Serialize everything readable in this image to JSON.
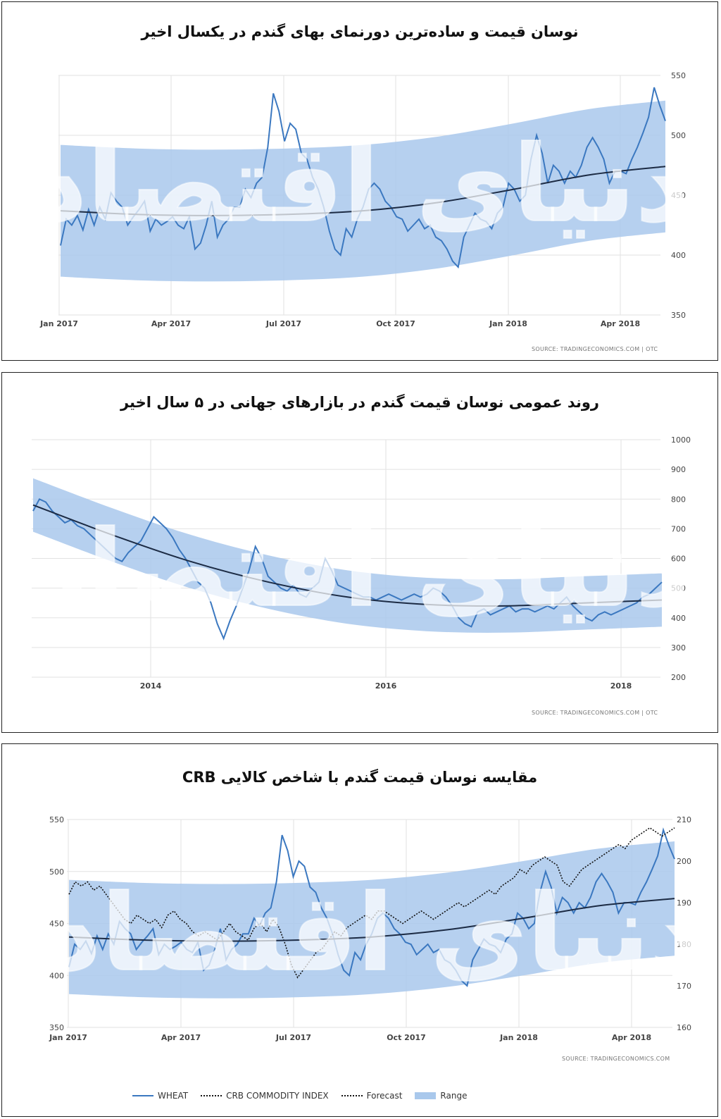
{
  "source_top": "SOURCE: TRADINGECONOMICS.COM | OTC",
  "source_mid": "SOURCE: TRADINGECONOMICS.COM | OTC",
  "source_bot": "SOURCE: TRADINGECONOMICS.COM",
  "watermark": "دنیای اقتصاد",
  "colors": {
    "wheat": "#3b78c0",
    "band": "#a9c8ec",
    "trend": "#1c2b44",
    "crb": "#111111"
  },
  "legend": {
    "wheat": "WHEAT",
    "crb": "CRB COMMODITY INDEX",
    "forecast": "Forecast",
    "range": "Range"
  },
  "chart_data": [
    {
      "type": "line",
      "title": "نوسان قیمت  و ساده‌ترین دورنمای بهای گندم در یکسال اخیر",
      "x_tick_labels": [
        "Jan 2017",
        "Apr 2017",
        "Jul 2017",
        "Oct 2017",
        "Jan 2018",
        "Apr 2018"
      ],
      "y_tick_labels": [
        "550",
        "500",
        "450",
        "400",
        "350"
      ],
      "ylim": [
        350,
        550
      ],
      "y_axis_side": "right",
      "grid": true,
      "series": [
        {
          "values": [
            408,
            430,
            425,
            433,
            421,
            438,
            425,
            440,
            430,
            452,
            445,
            440,
            425,
            432,
            438,
            445,
            420,
            430,
            425,
            428,
            432,
            425,
            422,
            432,
            405,
            410,
            425,
            445,
            415,
            425,
            430,
            440,
            440,
            455,
            448,
            460,
            465,
            490,
            535,
            520,
            495,
            510,
            505,
            485,
            480,
            465,
            455,
            440,
            420,
            405,
            400,
            422,
            415,
            430,
            440,
            455,
            460,
            455,
            445,
            440,
            432,
            430,
            420,
            425,
            430,
            422,
            425,
            415,
            412,
            405,
            395,
            390,
            415,
            425,
            435,
            430,
            428,
            422,
            435,
            440,
            460,
            455,
            445,
            450,
            480,
            500,
            485,
            460,
            475,
            470,
            460,
            470,
            465,
            475,
            490,
            498,
            490,
            480,
            460,
            470,
            470,
            468,
            480,
            490,
            502,
            515,
            540,
            525,
            512
          ]
        }
      ],
      "trend": [
        437,
        434,
        433,
        434,
        437,
        444,
        455,
        467,
        474
      ],
      "band_offset": 55
    },
    {
      "type": "line",
      "title": "روند عمومی نوسان قیمت گندم در بازارهای جهانی در ۵ سال اخیر",
      "x_tick_labels": [
        "2014",
        "2016",
        "2018"
      ],
      "y_tick_labels": [
        "1000",
        "900",
        "800",
        "700",
        "600",
        "500",
        "400",
        "300",
        "200"
      ],
      "ylim": [
        200,
        1000
      ],
      "y_axis_side": "right",
      "grid": true,
      "series": [
        {
          "values": [
            760,
            800,
            790,
            760,
            740,
            720,
            730,
            710,
            700,
            680,
            660,
            640,
            620,
            600,
            590,
            620,
            640,
            660,
            700,
            740,
            720,
            700,
            670,
            630,
            600,
            560,
            520,
            500,
            450,
            380,
            330,
            390,
            440,
            500,
            560,
            640,
            600,
            540,
            520,
            500,
            490,
            510,
            480,
            470,
            500,
            520,
            600,
            560,
            510,
            500,
            490,
            480,
            470,
            470,
            460,
            470,
            480,
            470,
            460,
            470,
            480,
            470,
            480,
            500,
            490,
            470,
            440,
            400,
            380,
            370,
            420,
            430,
            410,
            420,
            430,
            440,
            420,
            430,
            430,
            420,
            430,
            440,
            430,
            450,
            470,
            440,
            420,
            400,
            390,
            410,
            420,
            410,
            420,
            430,
            440,
            450,
            470,
            480,
            500,
            520
          ]
        }
      ],
      "trend": [
        780,
        680,
        590,
        520,
        470,
        445,
        440,
        450,
        460
      ],
      "band_offset": 90
    },
    {
      "type": "line",
      "title": "مقایسه نوسان قیمت گندم با شاخص کالایی CRB",
      "x_tick_labels": [
        "Jan 2017",
        "Apr 2017",
        "Jul 2017",
        "Oct 2017",
        "Jan 2018",
        "Apr 2018"
      ],
      "y_tick_labels": [
        "550",
        "500",
        "450",
        "400",
        "350"
      ],
      "y2_tick_labels": [
        "210",
        "200",
        "190",
        "180",
        "170",
        "160"
      ],
      "ylim": [
        350,
        550
      ],
      "y2lim": [
        160,
        210
      ],
      "legend_position": "bottom",
      "grid": true,
      "series": [
        {
          "name": "WHEAT",
          "values": [
            408,
            430,
            425,
            433,
            421,
            438,
            425,
            440,
            430,
            452,
            445,
            440,
            425,
            432,
            438,
            445,
            420,
            430,
            425,
            428,
            432,
            425,
            422,
            432,
            405,
            410,
            425,
            445,
            415,
            425,
            430,
            440,
            440,
            455,
            448,
            460,
            465,
            490,
            535,
            520,
            495,
            510,
            505,
            485,
            480,
            465,
            455,
            440,
            420,
            405,
            400,
            422,
            415,
            430,
            440,
            455,
            460,
            455,
            445,
            440,
            432,
            430,
            420,
            425,
            430,
            422,
            425,
            415,
            412,
            405,
            395,
            390,
            415,
            425,
            435,
            430,
            428,
            422,
            435,
            440,
            460,
            455,
            445,
            450,
            480,
            500,
            485,
            460,
            475,
            470,
            460,
            470,
            465,
            475,
            490,
            498,
            490,
            480,
            460,
            470,
            470,
            468,
            480,
            490,
            502,
            515,
            540,
            525,
            512
          ]
        },
        {
          "name": "CRB COMMODITY INDEX",
          "values": [
            192,
            195,
            194,
            195,
            193,
            194,
            192,
            190,
            188,
            186,
            185,
            187,
            186,
            185,
            186,
            184,
            187,
            188,
            186,
            185,
            183,
            182,
            183,
            182,
            181,
            183,
            185,
            183,
            182,
            181,
            184,
            185,
            183,
            186,
            184,
            180,
            175,
            172,
            174,
            176,
            178,
            179,
            181,
            183,
            182,
            184,
            185,
            186,
            187,
            186,
            188,
            188,
            187,
            186,
            185,
            186,
            187,
            188,
            187,
            186,
            187,
            188,
            189,
            190,
            189,
            190,
            191,
            192,
            193,
            192,
            194,
            195,
            196,
            198,
            197,
            199,
            200,
            201,
            200,
            199,
            195,
            194,
            196,
            198,
            199,
            200,
            201,
            202,
            203,
            204,
            203,
            205,
            206,
            207,
            208,
            207,
            206,
            207,
            208
          ]
        }
      ],
      "trend": [
        437,
        434,
        433,
        434,
        437,
        444,
        455,
        467,
        474
      ],
      "band_offset": 55
    }
  ]
}
